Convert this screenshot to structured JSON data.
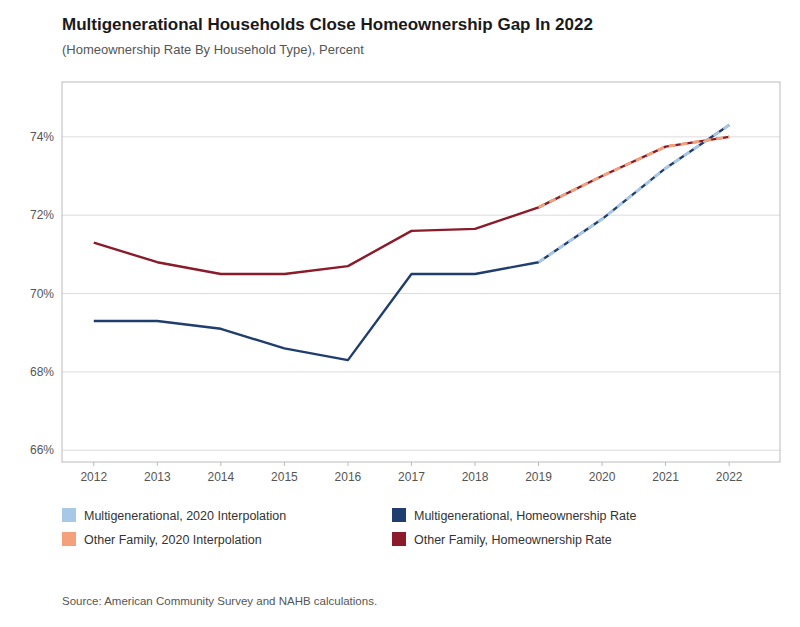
{
  "chart_data": {
    "type": "line",
    "title": "Multigenerational Households Close Homeownership Gap In 2022",
    "subtitle": "(Homeownership Rate By Household Type), Percent",
    "source": "Source: American Community Survey and NAHB calculations.",
    "x": [
      2012,
      2013,
      2014,
      2015,
      2016,
      2017,
      2018,
      2019,
      2020,
      2021,
      2022
    ],
    "series": [
      {
        "name": "Multigenerational, 2020 Interpolation",
        "color": "#a8c8e8",
        "line_style": "dashed",
        "values": [
          null,
          null,
          null,
          null,
          null,
          null,
          null,
          70.8,
          71.9,
          73.2,
          74.3
        ]
      },
      {
        "name": "Other Family, 2020 Interpolation",
        "color": "#f4a07a",
        "line_style": "dashed",
        "values": [
          null,
          null,
          null,
          null,
          null,
          null,
          null,
          72.2,
          73.0,
          73.75,
          74.0
        ]
      },
      {
        "name": "Multigenerational, Homeownership Rate",
        "color": "#1f3d6e",
        "line_style": "solid",
        "values": [
          69.3,
          69.3,
          69.1,
          68.6,
          68.3,
          70.5,
          70.5,
          70.8,
          71.9,
          73.2,
          74.3
        ]
      },
      {
        "name": "Other Family, Homeownership Rate",
        "color": "#8b1a2a",
        "line_style": "solid",
        "values": [
          71.3,
          70.8,
          70.5,
          70.5,
          70.7,
          71.6,
          71.65,
          72.2,
          73.0,
          73.75,
          74.0
        ]
      }
    ],
    "xlim": [
      2011.5,
      2022.8
    ],
    "xticks": [
      2012,
      2013,
      2014,
      2015,
      2016,
      2017,
      2018,
      2019,
      2020,
      2021,
      2022
    ],
    "ylim": [
      65.7,
      75.4
    ],
    "yticks": [
      {
        "value": 66,
        "label": "66%"
      },
      {
        "value": 68,
        "label": "68%"
      },
      {
        "value": 70,
        "label": "70%"
      },
      {
        "value": 72,
        "label": "72%"
      },
      {
        "value": 74,
        "label": "74%"
      }
    ],
    "grid": true,
    "legend": "bottom"
  }
}
